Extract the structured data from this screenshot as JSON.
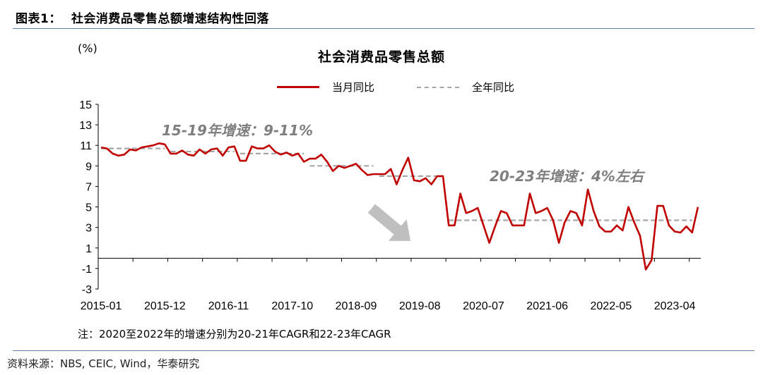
{
  "figure": {
    "label": "图表1：",
    "title": "社会消费品零售总额增速结构性回落"
  },
  "chart_data": {
    "type": "line",
    "title": "社会消费品零售总额",
    "unit": "(%)",
    "ylim": [
      -3,
      15
    ],
    "yticks": [
      15,
      13,
      11,
      9,
      7,
      5,
      3,
      1,
      -1,
      -3
    ],
    "xtick_labels": [
      "2015-01",
      "2015-12",
      "2016-11",
      "2017-10",
      "2018-09",
      "2019-08",
      "2020-07",
      "2021-06",
      "2022-05",
      "2023-04"
    ],
    "x_start": "2015-01",
    "x_end": "2023-07",
    "series": [
      {
        "name": "当月同比",
        "color": "#c00000",
        "style": "solid",
        "values": [
          10.8,
          10.7,
          10.2,
          10.0,
          10.1,
          10.6,
          10.5,
          10.8,
          10.9,
          11.0,
          11.2,
          11.1,
          10.2,
          10.2,
          10.5,
          10.1,
          10.0,
          10.6,
          10.2,
          10.6,
          10.7,
          10.0,
          10.8,
          10.9,
          9.5,
          9.5,
          10.9,
          10.7,
          10.7,
          11.0,
          10.4,
          10.1,
          10.3,
          10.0,
          10.2,
          9.4,
          9.7,
          9.7,
          10.1,
          9.4,
          8.5,
          9.0,
          8.8,
          9.0,
          9.2,
          8.6,
          8.1,
          8.2,
          8.2,
          8.2,
          8.7,
          7.2,
          8.6,
          9.8,
          7.6,
          7.5,
          7.8,
          7.2,
          8.0,
          8.0,
          3.2,
          3.2,
          6.3,
          4.4,
          4.6,
          4.9,
          3.2,
          1.5,
          3.1,
          4.6,
          4.4,
          3.2,
          3.2,
          3.2,
          6.3,
          4.4,
          4.6,
          4.9,
          3.7,
          1.5,
          3.5,
          4.6,
          4.4,
          3.2,
          6.7,
          4.6,
          3.1,
          2.6,
          2.6,
          3.2,
          2.7,
          5.0,
          3.5,
          2.2,
          -1.1,
          -0.2,
          5.1,
          5.1,
          3.2,
          2.6,
          2.5,
          3.1,
          2.5,
          5.0
        ]
      },
      {
        "name": "全年同比",
        "color": "#a6a6a6",
        "style": "dashed",
        "segments": [
          {
            "from": "2015-01",
            "to": "2015-12",
            "value": 10.7
          },
          {
            "from": "2016-01",
            "to": "2016-12",
            "value": 10.4
          },
          {
            "from": "2017-01",
            "to": "2017-12",
            "value": 10.2
          },
          {
            "from": "2018-01",
            "to": "2018-12",
            "value": 9.0
          },
          {
            "from": "2019-01",
            "to": "2019-12",
            "value": 8.0
          },
          {
            "from": "2020-01",
            "to": "2023-07",
            "value": 3.7
          }
        ]
      }
    ],
    "annotations": [
      {
        "text": "15-19年增速：9-11%"
      },
      {
        "text": "20-23年增速：4%左右"
      }
    ],
    "arrow_color": "#bfbfbf"
  },
  "note": "注：2020至2022年的增速分别为20-21年CAGR和22-23年CAGR",
  "source": "资料来源：NBS, CEIC, Wind，华泰研究"
}
